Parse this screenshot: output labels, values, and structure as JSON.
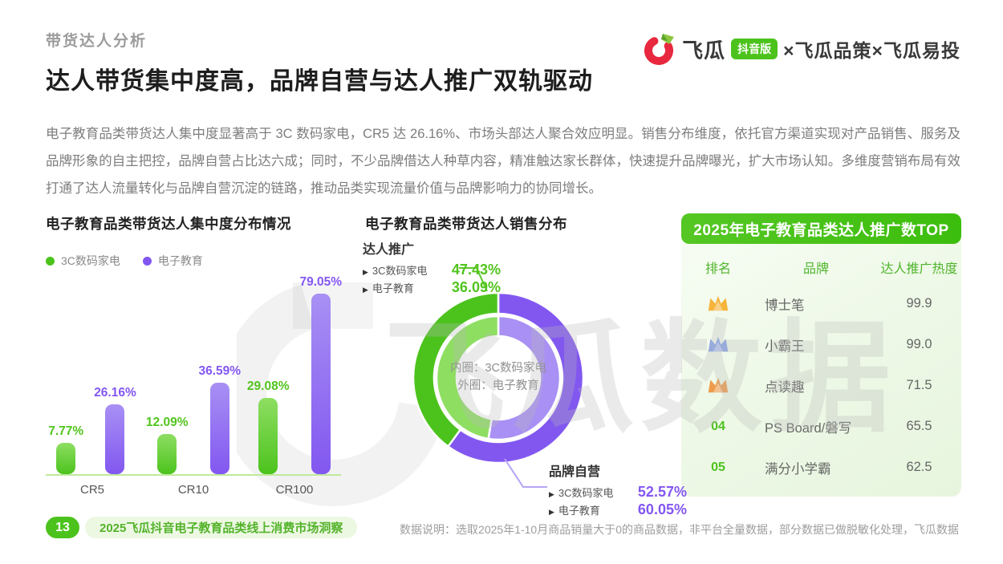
{
  "page": {
    "section_label": "带货达人分析",
    "title": "达人带货集中度高，品牌自营与达人推广双轨驱动",
    "intro": "电子教育品类带货达人集中度显著高于 3C 数码家电，CR5 达 26.16%、市场头部达人聚合效应明显。销售分布维度，依托官方渠道实现对产品销售、服务及品牌形象的自主把控，品牌自营占比达六成；同时，不少品牌借达人种草内容，精准触达家长群体，快速提升品牌曝光，扩大市场认知。多维度营销布局有效打通了达人流量转化与品牌自营沉淀的链路，推动品类实现流量价值与品牌影响力的协同增长。",
    "watermark": "飞瓜数据"
  },
  "logo": {
    "brand": "飞瓜",
    "badge": "抖音版",
    "partners": "×飞瓜品策×飞瓜易投"
  },
  "footer": {
    "page_number": "13",
    "report_label": "2025飞瓜抖音电子教育品类线上消费市场洞察",
    "data_note": "数据说明：选取2025年1-10月商品销量大于0的商品数据，非平台全量数据，部分数据已做脱敏化处理，飞瓜数据"
  },
  "colors": {
    "green": "#4cc31d",
    "green_light": "#8ede62",
    "green_value": "#52c41e",
    "purple": "#8257f0",
    "purple_light": "#a890f4",
    "purple_value": "#8457f2",
    "leader_green": "#5bc92c",
    "leader_purple": "#b6a4f4",
    "crown_gold": "#f6b43c",
    "crown_blue": "#8aa5e9",
    "crown_bronze": "#ee9c4c"
  },
  "chart_data": [
    {
      "type": "bar",
      "title": "电子教育品类带货达人集中度分布情况",
      "categories": [
        "CR5",
        "CR10",
        "CR100"
      ],
      "series": [
        {
          "name": "3C数码家电",
          "values": [
            7.77,
            12.09,
            29.08
          ]
        },
        {
          "name": "电子教育",
          "values": [
            26.16,
            36.59,
            79.05
          ]
        }
      ],
      "unit": "%",
      "ylim": [
        0,
        100
      ],
      "grid": false,
      "legend_position": "top-left"
    },
    {
      "type": "donut",
      "title": "电子教育品类带货达人销售分布",
      "center_label": {
        "line1": "内圈：3C数码家电",
        "line2": "外圈：电子教育"
      },
      "rings": {
        "outer": {
          "category": "电子教育",
          "segments": [
            {
              "label": "品牌自营",
              "value": 60.05
            },
            {
              "label": "达人推广",
              "value": 36.09
            }
          ]
        },
        "inner": {
          "category": "3C数码家电",
          "segments": [
            {
              "label": "品牌自营",
              "value": 52.57
            },
            {
              "label": "达人推广",
              "value": 47.43
            }
          ]
        }
      },
      "annotations": {
        "promo": {
          "title": "达人推广",
          "rows": [
            {
              "marker": "▶",
              "label": "3C数码家电",
              "value": "47.43%"
            },
            {
              "marker": "▶",
              "label": "电子教育",
              "value": "36.09%"
            }
          ]
        },
        "self": {
          "title": "品牌自营",
          "rows": [
            {
              "marker": "▶",
              "label": "3C数码家电",
              "value": "52.57%"
            },
            {
              "marker": "▶",
              "label": "电子教育",
              "value": "60.05%"
            }
          ]
        }
      }
    },
    {
      "type": "table",
      "title": "2025年电子教育品类达人推广数TOP",
      "columns": [
        "排名",
        "品牌",
        "达人推广热度"
      ],
      "rows": [
        {
          "rank": "01",
          "rank_icon": "crown-gold",
          "brand": "博士笔",
          "value": "99.9"
        },
        {
          "rank": "02",
          "rank_icon": "crown-blue",
          "brand": "小霸王",
          "value": "99.0"
        },
        {
          "rank": "03",
          "rank_icon": "crown-bronze",
          "brand": "点读趣",
          "value": "71.5"
        },
        {
          "rank": "04",
          "rank_icon": null,
          "brand": "PS Board/磐写",
          "value": "65.5"
        },
        {
          "rank": "05",
          "rank_icon": null,
          "brand": "满分小学霸",
          "value": "62.5"
        }
      ]
    }
  ]
}
